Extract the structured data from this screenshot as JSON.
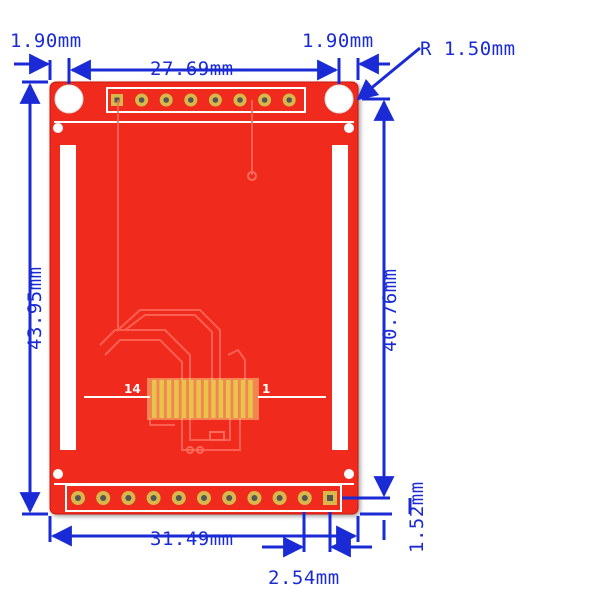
{
  "colors": {
    "board": "#f02a1e",
    "board_edge": "#d81e14",
    "trace": "#ff6a5a",
    "dimension": "#1a2bd6",
    "silkscreen": "#ffffff",
    "pad": "#d8b84a"
  },
  "dimensions": {
    "left_margin": "1.90mm",
    "right_margin": "1.90mm",
    "hole_spacing": "27.69mm",
    "hole_radius": "R 1.50mm",
    "board_height": "43.95mm",
    "hole_height": "40.76mm",
    "board_width": "31.49mm",
    "header_offset": "1.52mm",
    "pin_pitch": "2.54mm"
  },
  "silkscreen": {
    "pin_label_left": "14",
    "pin_label_right": "1"
  },
  "board": {
    "top_header_pins": 8,
    "bottom_header_pins": 11,
    "fpc_contacts": 14
  }
}
